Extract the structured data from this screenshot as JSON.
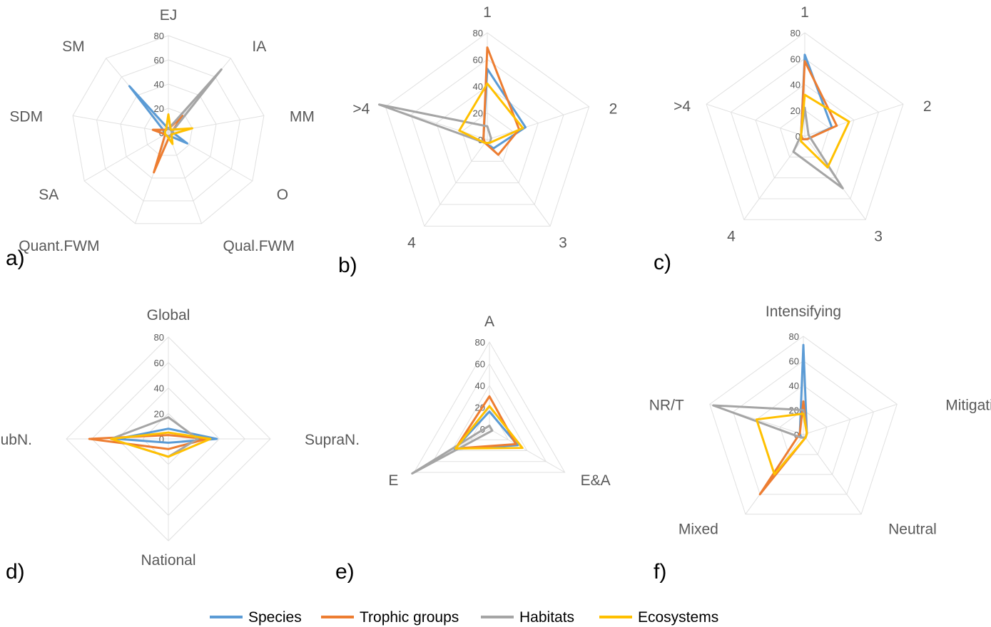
{
  "series_names": [
    "Species",
    "Trophic groups",
    "Habitats",
    "Ecosystems"
  ],
  "colors": {
    "Species": "#5b9bd5",
    "Trophic groups": "#ed7d31",
    "Habitats": "#a5a5a5",
    "Ecosystems": "#ffc000",
    "grid": "#e0e0e0",
    "text": "#595959"
  },
  "chart_data": [
    {
      "type": "radar",
      "panel": "a)",
      "axes": [
        "EJ",
        "IA",
        "MM",
        "O",
        "Qual.FWM",
        "Quant.FWM",
        "SA",
        "SDM",
        "SM"
      ],
      "ticks": [
        0,
        20,
        40,
        60,
        80
      ],
      "range": [
        0,
        80
      ],
      "series": [
        {
          "name": "Species",
          "values": [
            3,
            3,
            3,
            18,
            3,
            3,
            3,
            3,
            50
          ]
        },
        {
          "name": "Trophic groups",
          "values": [
            3,
            18,
            3,
            3,
            3,
            35,
            3,
            13,
            3
          ]
        },
        {
          "name": "Habitats",
          "values": [
            3,
            68,
            3,
            3,
            3,
            3,
            3,
            3,
            3
          ]
        },
        {
          "name": "Ecosystems",
          "values": [
            15,
            3,
            20,
            3,
            10,
            3,
            3,
            3,
            3
          ]
        }
      ]
    },
    {
      "type": "radar",
      "panel": "b)",
      "axes": [
        "1",
        "2",
        "3",
        "4",
        ">4"
      ],
      "ticks": [
        0,
        20,
        40,
        60,
        80
      ],
      "range": [
        0,
        80
      ],
      "series": [
        {
          "name": "Species",
          "values": [
            53,
            30,
            8,
            3,
            3
          ]
        },
        {
          "name": "Trophic groups",
          "values": [
            69,
            25,
            14,
            3,
            3
          ]
        },
        {
          "name": "Habitats",
          "values": [
            10,
            3,
            3,
            3,
            85
          ]
        },
        {
          "name": "Ecosystems",
          "values": [
            42,
            28,
            3,
            3,
            22
          ]
        }
      ]
    },
    {
      "type": "radar",
      "panel": "c)",
      "axes": [
        "1",
        "2",
        "3",
        "4",
        ">4"
      ],
      "ticks": [
        0,
        20,
        40,
        60,
        80
      ],
      "range": [
        0,
        80
      ],
      "series": [
        {
          "name": "Species",
          "values": [
            63,
            22,
            3,
            3,
            3
          ]
        },
        {
          "name": "Trophic groups",
          "values": [
            58,
            26,
            3,
            3,
            3
          ]
        },
        {
          "name": "Habitats",
          "values": [
            22,
            3,
            50,
            15,
            3
          ]
        },
        {
          "name": "Ecosystems",
          "values": [
            32,
            36,
            30,
            5,
            3
          ]
        }
      ]
    },
    {
      "type": "radar",
      "panel": "d)",
      "axes": [
        "Global",
        "SupraN.",
        "National",
        "SubN."
      ],
      "ticks": [
        0,
        20,
        40,
        60,
        80
      ],
      "range": [
        0,
        80
      ],
      "series": [
        {
          "name": "Species",
          "values": [
            8,
            38,
            3,
            40
          ]
        },
        {
          "name": "Trophic groups",
          "values": [
            3,
            30,
            8,
            62
          ]
        },
        {
          "name": "Habitats",
          "values": [
            17,
            23,
            14,
            45
          ]
        },
        {
          "name": "Ecosystems",
          "values": [
            5,
            33,
            14,
            45
          ]
        }
      ]
    },
    {
      "type": "radar",
      "panel": "e)",
      "axes": [
        "A",
        "E&A",
        "E"
      ],
      "ticks": [
        0,
        20,
        40,
        60,
        80
      ],
      "range": [
        0,
        80
      ],
      "series": [
        {
          "name": "Species",
          "values": [
            16,
            30,
            37
          ]
        },
        {
          "name": "Trophic groups",
          "values": [
            30,
            28,
            36
          ]
        },
        {
          "name": "Habitats",
          "values": [
            3,
            3,
            82
          ]
        },
        {
          "name": "Ecosystems",
          "values": [
            21,
            35,
            36
          ]
        }
      ]
    },
    {
      "type": "radar",
      "panel": "f)",
      "axes": [
        "Intensifying",
        "Mitigating",
        "Neutral",
        "Mixed",
        "NR/T"
      ],
      "ticks": [
        0,
        20,
        40,
        60,
        80
      ],
      "range": [
        0,
        80
      ],
      "series": [
        {
          "name": "Species",
          "values": [
            73,
            3,
            3,
            3,
            3
          ]
        },
        {
          "name": "Trophic groups",
          "values": [
            27,
            3,
            3,
            60,
            3
          ]
        },
        {
          "name": "Habitats",
          "values": [
            20,
            3,
            3,
            3,
            77
          ]
        },
        {
          "name": "Ecosystems",
          "values": [
            17,
            3,
            3,
            40,
            40
          ]
        }
      ]
    }
  ]
}
